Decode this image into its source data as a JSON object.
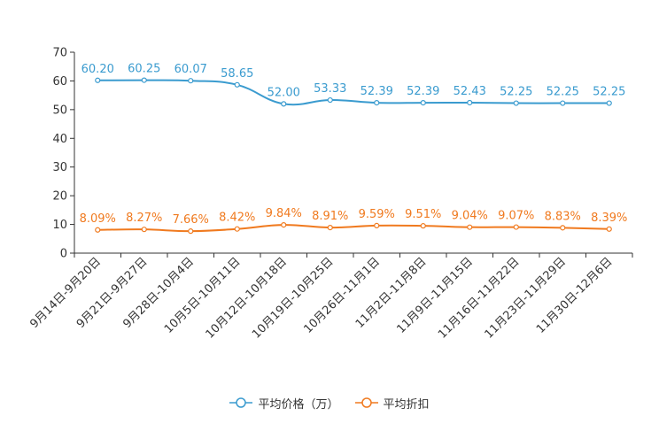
{
  "chart_data": {
    "type": "line",
    "categories": [
      "9月14日-9月20日",
      "9月21日-9月27日",
      "9月28日-10月4日",
      "10月5日-10月11日",
      "10月12日-10月18日",
      "10月19日-10月25日",
      "10月26日-11月1日",
      "11月2日-11月8日",
      "11月9日-11月15日",
      "11月16日-11月22日",
      "11月23日-11月29日",
      "11月30日-12月6日"
    ],
    "ylim": [
      0,
      70
    ],
    "yticks": [
      "0",
      "10",
      "20",
      "30",
      "40",
      "50",
      "60",
      "70"
    ],
    "series": [
      {
        "name": "平均价格（万）",
        "color": "#3a9bcf",
        "values": [
          60.2,
          60.25,
          60.07,
          58.65,
          52.0,
          53.33,
          52.39,
          52.39,
          52.43,
          52.25,
          52.25,
          52.25
        ],
        "labels": [
          "60.20",
          "60.25",
          "60.07",
          "58.65",
          "52.00",
          "53.33",
          "52.39",
          "52.39",
          "52.43",
          "52.25",
          "52.25",
          "52.25"
        ]
      },
      {
        "name": "平均折扣",
        "color": "#f07a1f",
        "values": [
          8.09,
          8.27,
          7.66,
          8.42,
          9.84,
          8.91,
          9.59,
          9.51,
          9.04,
          9.07,
          8.83,
          8.39
        ],
        "labels": [
          "8.09%",
          "8.27%",
          "7.66%",
          "8.42%",
          "9.84%",
          "8.91%",
          "9.59%",
          "9.51%",
          "9.04%",
          "9.07%",
          "8.83%",
          "8.39%"
        ]
      }
    ],
    "legend_position": "bottom"
  },
  "legend": {
    "price_label": "平均价格（万）",
    "discount_label": "平均折扣"
  }
}
